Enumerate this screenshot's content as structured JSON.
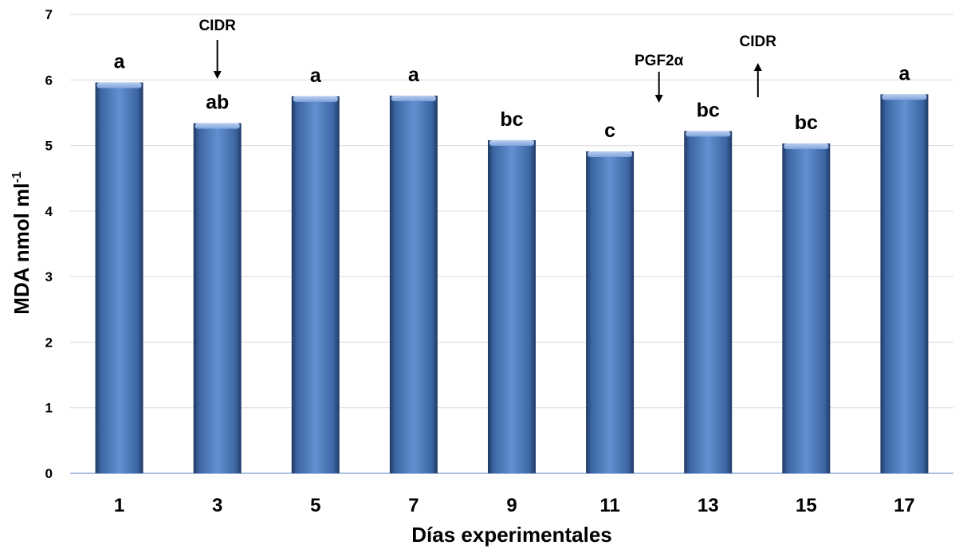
{
  "chart_data": {
    "type": "bar",
    "title": "",
    "xlabel": "Días experimentales",
    "ylabel": "MDA nmol ml",
    "ylabel_superscript": "-1",
    "categories": [
      "1",
      "3",
      "5",
      "7",
      "9",
      "11",
      "13",
      "15",
      "17"
    ],
    "values": [
      5.96,
      5.34,
      5.75,
      5.76,
      5.08,
      4.91,
      5.22,
      5.03,
      5.78
    ],
    "significance_labels": [
      "a",
      "ab",
      "a",
      "a",
      "bc",
      "c",
      "bc",
      "bc",
      "a"
    ],
    "ylim": [
      0,
      7
    ],
    "yticks": [
      "0",
      "1",
      "2",
      "3",
      "4",
      "5",
      "6",
      "7"
    ],
    "grid": true,
    "legend": "none",
    "bar_color": "#4f81bd",
    "annotations": [
      {
        "text": "CIDR",
        "arrow": "down",
        "near_day": "3"
      },
      {
        "text": "PGF2α",
        "arrow": "down",
        "near_day": "12"
      },
      {
        "text": "CIDR",
        "arrow": "up",
        "near_day": "14"
      }
    ]
  }
}
